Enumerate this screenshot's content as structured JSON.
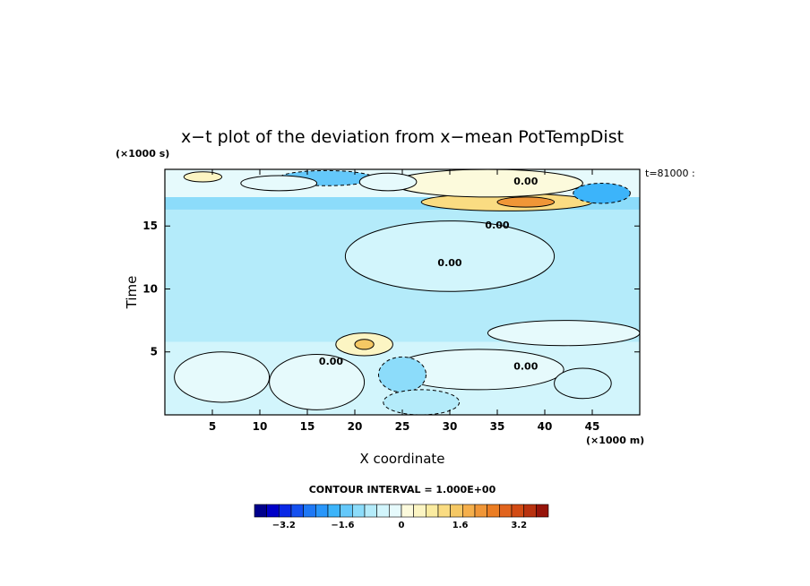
{
  "chart_data": {
    "type": "heatmap",
    "title": "x−t plot of the deviation from x−mean PotTempDist",
    "xlabel": "X coordinate",
    "ylabel": "Time",
    "x_unit": "(×1000 m)",
    "y_unit": "(×1000 s)",
    "time_label": "t=81000 :",
    "contour_interval_label": "CONTOUR INTERVAL = 1.000E+00",
    "xlim": [
      0,
      50
    ],
    "ylim": [
      0,
      19.5
    ],
    "x_ticks": [
      5,
      10,
      15,
      20,
      25,
      30,
      35,
      40,
      45
    ],
    "y_ticks": [
      5,
      10,
      15
    ],
    "colorbar": {
      "range": [
        -4,
        4
      ],
      "step": 0.4,
      "tick_values": [
        -3.2,
        -1.6,
        0,
        1.6,
        3.2
      ],
      "tick_labels": [
        "−3.2",
        "−1.6",
        "0",
        "1.6",
        "3.2"
      ],
      "colors": [
        "#00008c",
        "#0000c8",
        "#0a28e6",
        "#1450f0",
        "#1e78f5",
        "#2896fa",
        "#3cb4fa",
        "#64c8fa",
        "#8cdcfa",
        "#b4ebfa",
        "#d2f5fc",
        "#e6fafc",
        "#fcfadc",
        "#fcf5c3",
        "#faeba0",
        "#fadc82",
        "#f5c864",
        "#f5af4b",
        "#f09637",
        "#eb7d23",
        "#e1641e",
        "#d24b14",
        "#b9320f",
        "#96140a"
      ]
    },
    "contour_labels": [
      "0.00"
    ],
    "regions": [
      {
        "x0": 0,
        "x1": 50,
        "y0": 0,
        "y1": 5.8,
        "level": 0.2
      },
      {
        "x0": 0,
        "x1": 50,
        "y0": 5.8,
        "y1": 7.4,
        "level": -0.4
      },
      {
        "x0": 0,
        "x1": 50,
        "y0": 7.4,
        "y1": 16.3,
        "level": -0.2
      },
      {
        "x0": 0,
        "x1": 50,
        "y0": 16.3,
        "y1": 17.3,
        "level": -0.5
      },
      {
        "x0": 0,
        "x1": 50,
        "y0": 17.3,
        "y1": 19.5,
        "level": 0.4
      }
    ],
    "blobs": [
      {
        "x": 36,
        "y": 16.9,
        "rx": 9,
        "ry": 0.7,
        "level": 2.2
      },
      {
        "x": 38,
        "y": 16.9,
        "rx": 3,
        "ry": 0.4,
        "level": 3.2
      },
      {
        "x": 34,
        "y": 18.4,
        "rx": 10,
        "ry": 1.1,
        "level": 1.0
      },
      {
        "x": 17,
        "y": 18.8,
        "rx": 5,
        "ry": 0.6,
        "level": -1.0
      },
      {
        "x": 46,
        "y": 17.6,
        "rx": 3,
        "ry": 0.8,
        "level": -1.2
      },
      {
        "x": 4,
        "y": 18.9,
        "rx": 2,
        "ry": 0.4,
        "level": 1.6
      },
      {
        "x": 12,
        "y": 18.4,
        "rx": 4,
        "ry": 0.6,
        "level": 0.6
      },
      {
        "x": 23.5,
        "y": 18.5,
        "rx": 3,
        "ry": 0.7,
        "level": 0.6
      },
      {
        "x": 30,
        "y": 12.6,
        "rx": 11,
        "ry": 2.8,
        "level": 0.1
      },
      {
        "x": 21,
        "y": 5.6,
        "rx": 3,
        "ry": 0.9,
        "level": 1.4
      },
      {
        "x": 21,
        "y": 5.6,
        "rx": 1,
        "ry": 0.4,
        "level": 2.6
      },
      {
        "x": 42,
        "y": 6.5,
        "rx": 8,
        "ry": 1.0,
        "level": 0.8
      },
      {
        "x": 6,
        "y": 3.0,
        "rx": 5,
        "ry": 2.0,
        "level": 0.6
      },
      {
        "x": 16,
        "y": 2.6,
        "rx": 5,
        "ry": 2.2,
        "level": 0.5
      },
      {
        "x": 33,
        "y": 3.6,
        "rx": 9,
        "ry": 1.6,
        "level": 0.4
      },
      {
        "x": 25,
        "y": 3.2,
        "rx": 2.5,
        "ry": 1.4,
        "level": -0.6
      },
      {
        "x": 27,
        "y": 1.0,
        "rx": 4,
        "ry": 1.0,
        "level": -0.3
      },
      {
        "x": 44,
        "y": 2.5,
        "rx": 3,
        "ry": 1.2,
        "level": 0.2
      }
    ]
  }
}
